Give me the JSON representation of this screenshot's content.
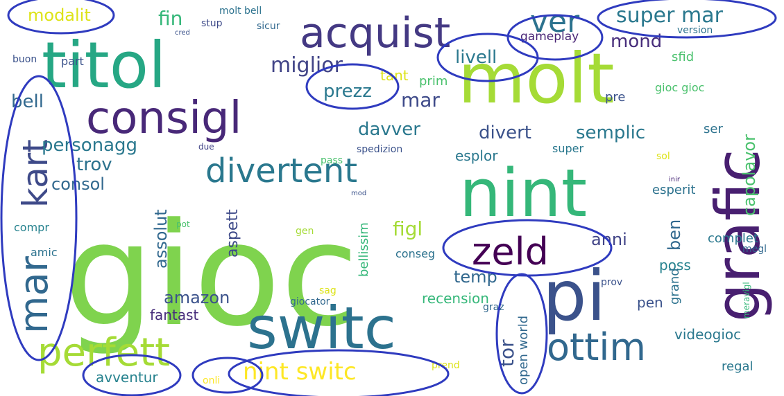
{
  "words": [
    {
      "text": "gioc",
      "color": "#7fd34e"
    },
    {
      "text": "molt",
      "color": "#a5db36"
    },
    {
      "text": "nint",
      "color": "#35b779"
    },
    {
      "text": "switc",
      "color": "#2c728e"
    },
    {
      "text": "titol",
      "color": "#26a784"
    },
    {
      "text": "pi",
      "color": "#3b528b"
    },
    {
      "text": "grafic",
      "color": "#481f70"
    },
    {
      "text": "acquist",
      "color": "#443983"
    },
    {
      "text": "consigl",
      "color": "#482878"
    },
    {
      "text": "divertent",
      "color": "#2a788e"
    },
    {
      "text": "perfett",
      "color": "#a5db36"
    },
    {
      "text": "ottim",
      "color": "#31688e"
    },
    {
      "text": "zeld",
      "color": "#440154"
    },
    {
      "text": "mar",
      "color": "#31688e"
    },
    {
      "text": "kart",
      "color": "#3e4a89"
    },
    {
      "text": "ver",
      "color": "#2c728e"
    },
    {
      "text": "super mar",
      "color": "#2a788e"
    },
    {
      "text": "modalit",
      "color": "#dde318"
    },
    {
      "text": "nint switc",
      "color": "#fde725"
    },
    {
      "text": "miglior",
      "color": "#414487"
    },
    {
      "text": "livell",
      "color": "#2a788e"
    },
    {
      "text": "mond",
      "color": "#472d7b"
    },
    {
      "text": "gameplay",
      "color": "#482475"
    },
    {
      "text": "fin",
      "color": "#35b779"
    },
    {
      "text": "prezz",
      "color": "#2a788e"
    },
    {
      "text": "tant",
      "color": "#dde318"
    },
    {
      "text": "prim",
      "color": "#4ac16d"
    },
    {
      "text": "mar",
      "color": "#3e4a89"
    },
    {
      "text": "davver",
      "color": "#2a788e"
    },
    {
      "text": "divert",
      "color": "#3b528b"
    },
    {
      "text": "semplic",
      "color": "#2a788e"
    },
    {
      "text": "personagg",
      "color": "#2a788e"
    },
    {
      "text": "bell",
      "color": "#31688e"
    },
    {
      "text": "trov",
      "color": "#2c728e"
    },
    {
      "text": "consol",
      "color": "#31688e"
    },
    {
      "text": "capolavor",
      "color": "#4ac16d"
    },
    {
      "text": "esplor",
      "color": "#2a788e"
    },
    {
      "text": "assolut",
      "color": "#31688e"
    },
    {
      "text": "aspett",
      "color": "#3e4a89"
    },
    {
      "text": "figl",
      "color": "#a5db36"
    },
    {
      "text": "ben",
      "color": "#31688e"
    },
    {
      "text": "anni",
      "color": "#414487"
    },
    {
      "text": "complet",
      "color": "#2a788e"
    },
    {
      "text": "amazon",
      "color": "#3b528b"
    },
    {
      "text": "fantast",
      "color": "#472d7b"
    },
    {
      "text": "temp",
      "color": "#31688e"
    },
    {
      "text": "recension",
      "color": "#35b779"
    },
    {
      "text": "esperit",
      "color": "#2c728e"
    },
    {
      "text": "poss",
      "color": "#26828e"
    },
    {
      "text": "grand",
      "color": "#2c728e"
    },
    {
      "text": "pen",
      "color": "#3b528b"
    },
    {
      "text": "videogioc",
      "color": "#2a788e"
    },
    {
      "text": "regal",
      "color": "#2a788e"
    },
    {
      "text": "open world",
      "color": "#31688e"
    },
    {
      "text": "tor",
      "color": "#3b528b"
    },
    {
      "text": "avventur",
      "color": "#26828e"
    },
    {
      "text": "onli",
      "color": "#fde725"
    },
    {
      "text": "prend",
      "color": "#dde318"
    },
    {
      "text": "giocator",
      "color": "#31688e"
    },
    {
      "text": "bellissim",
      "color": "#35b779"
    },
    {
      "text": "conseg",
      "color": "#2c728e"
    },
    {
      "text": "compr",
      "color": "#26828e"
    },
    {
      "text": "amic",
      "color": "#2c728e"
    },
    {
      "text": "super",
      "color": "#2a788e"
    },
    {
      "text": "spedizion",
      "color": "#3b528b"
    },
    {
      "text": "pass",
      "color": "#4ac16d"
    },
    {
      "text": "ser",
      "color": "#2c728e"
    },
    {
      "text": "sol",
      "color": "#dde318"
    },
    {
      "text": "sfid",
      "color": "#4ac16d"
    },
    {
      "text": "version",
      "color": "#2c728e"
    },
    {
      "text": "pre",
      "color": "#3b528b"
    },
    {
      "text": "gioc gioc",
      "color": "#4ac16d"
    },
    {
      "text": "part",
      "color": "#3b528b"
    },
    {
      "text": "buon",
      "color": "#3b528b"
    },
    {
      "text": "due",
      "color": "#414487"
    },
    {
      "text": "molt bell",
      "color": "#2c728e"
    },
    {
      "text": "stup",
      "color": "#3e4a89"
    },
    {
      "text": "sicur",
      "color": "#31688e"
    },
    {
      "text": "cred",
      "color": "#3b528b"
    },
    {
      "text": "gen",
      "color": "#a5db36"
    },
    {
      "text": "sag",
      "color": "#dde318"
    },
    {
      "text": "graz",
      "color": "#31688e"
    },
    {
      "text": "prov",
      "color": "#3b528b"
    },
    {
      "text": "megl",
      "color": "#31688e"
    },
    {
      "text": "meravigl",
      "color": "#35b779"
    },
    {
      "text": "mod",
      "color": "#3b528b"
    },
    {
      "text": "pot",
      "color": "#4ac16d"
    },
    {
      "text": "inir",
      "color": "#482878"
    }
  ]
}
